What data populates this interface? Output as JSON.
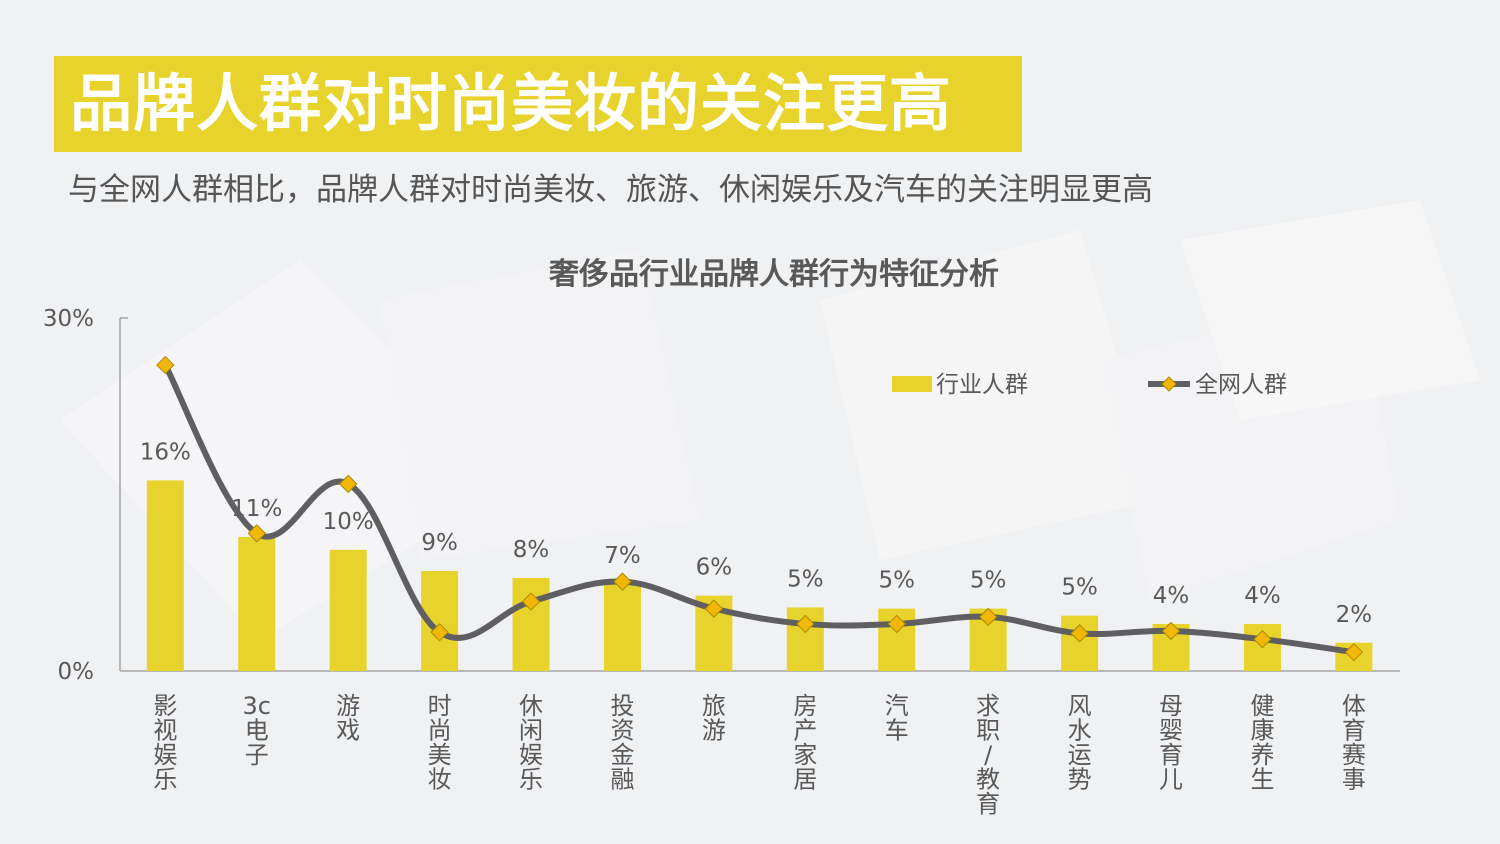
{
  "header": {
    "title": "品牌人群对时尚美妆的关注更高",
    "subtitle": "与全网人群相比，品牌人群对时尚美妆、旅游、休闲娱乐及汽车的关注明显更高"
  },
  "colors": {
    "bar": "#e8d22c",
    "line": "#5f5f62",
    "marker": "#f2b705",
    "title_bg": "#e8d22c"
  },
  "chart_data": {
    "type": "bar",
    "title": "奢侈品行业品牌人群行为特征分析",
    "categories": [
      "影视娱乐",
      "3c电子",
      "游戏",
      "时尚美妆",
      "休闲娱乐",
      "投资金融",
      "旅游",
      "房产家居",
      "汽车",
      "求职/教育",
      "风水运势",
      "母婴育儿",
      "健康养生",
      "体育赛事"
    ],
    "category_lines": [
      [
        "影",
        "视",
        "娱",
        "乐"
      ],
      [
        "3c",
        "电",
        "子"
      ],
      [
        "游",
        "戏"
      ],
      [
        "时",
        "尚",
        "美",
        "妆"
      ],
      [
        "休",
        "闲",
        "娱",
        "乐"
      ],
      [
        "投",
        "资",
        "金",
        "融"
      ],
      [
        "旅",
        "游"
      ],
      [
        "房",
        "产",
        "家",
        "居"
      ],
      [
        "汽",
        "车"
      ],
      [
        "求",
        "职",
        "/",
        "教",
        "育"
      ],
      [
        "风",
        "水",
        "运",
        "势"
      ],
      [
        "母",
        "婴",
        "育",
        "儿"
      ],
      [
        "健",
        "康",
        "养",
        "生"
      ],
      [
        "体",
        "育",
        "赛",
        "事"
      ]
    ],
    "series": [
      {
        "name": "行业人群",
        "kind": "bar",
        "values": [
          16.2,
          11.4,
          10.3,
          8.5,
          7.9,
          7.4,
          6.4,
          5.4,
          5.3,
          5.3,
          4.7,
          4.0,
          4.0,
          2.4
        ],
        "labels": [
          "16%",
          "11%",
          "10%",
          "9%",
          "8%",
          "7%",
          "6%",
          "5%",
          "5%",
          "5%",
          "5%",
          "4%",
          "4%",
          "2%"
        ]
      },
      {
        "name": "全网人群",
        "kind": "line",
        "values": [
          26.0,
          11.7,
          15.9,
          3.3,
          5.9,
          7.6,
          5.3,
          4.0,
          4.0,
          4.6,
          3.2,
          3.4,
          2.7,
          1.6
        ]
      }
    ],
    "y_ticks": [
      "0%",
      "30%"
    ],
    "ylim": [
      0,
      30
    ],
    "legend_position": "top-right"
  }
}
